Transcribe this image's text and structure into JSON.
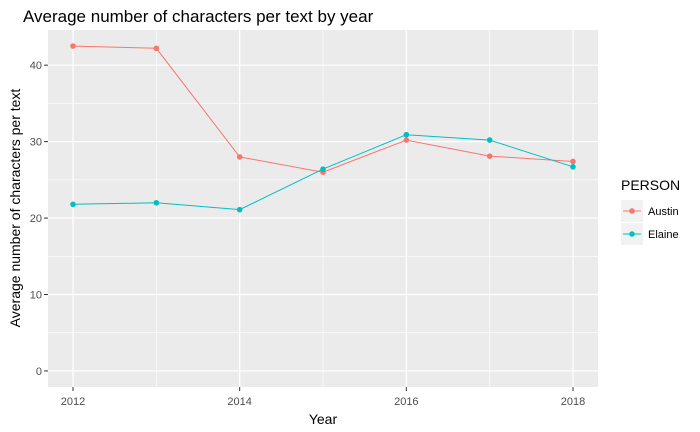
{
  "chart_data": {
    "type": "line",
    "title": "Average number of characters per text by year",
    "xlabel": "Year",
    "ylabel": "Average number of characters per text",
    "x": [
      2012,
      2013,
      2014,
      2015,
      2016,
      2017,
      2018
    ],
    "xlim": [
      2011.7,
      2018.3
    ],
    "ylim": [
      -2.1,
      44.6
    ],
    "x_ticks": [
      2012,
      2014,
      2016,
      2018
    ],
    "y_ticks": [
      0,
      10,
      20,
      30,
      40
    ],
    "grid": true,
    "legend": {
      "title": "PERSON",
      "position": "right"
    },
    "series": [
      {
        "name": "Austin",
        "color": "#F8766D",
        "values": [
          42.5,
          42.2,
          28.0,
          26.0,
          30.2,
          28.1,
          27.4
        ]
      },
      {
        "name": "Elaine",
        "color": "#00BFC4",
        "values": [
          21.8,
          22.0,
          21.1,
          26.4,
          30.9,
          30.2,
          26.7
        ]
      }
    ]
  }
}
